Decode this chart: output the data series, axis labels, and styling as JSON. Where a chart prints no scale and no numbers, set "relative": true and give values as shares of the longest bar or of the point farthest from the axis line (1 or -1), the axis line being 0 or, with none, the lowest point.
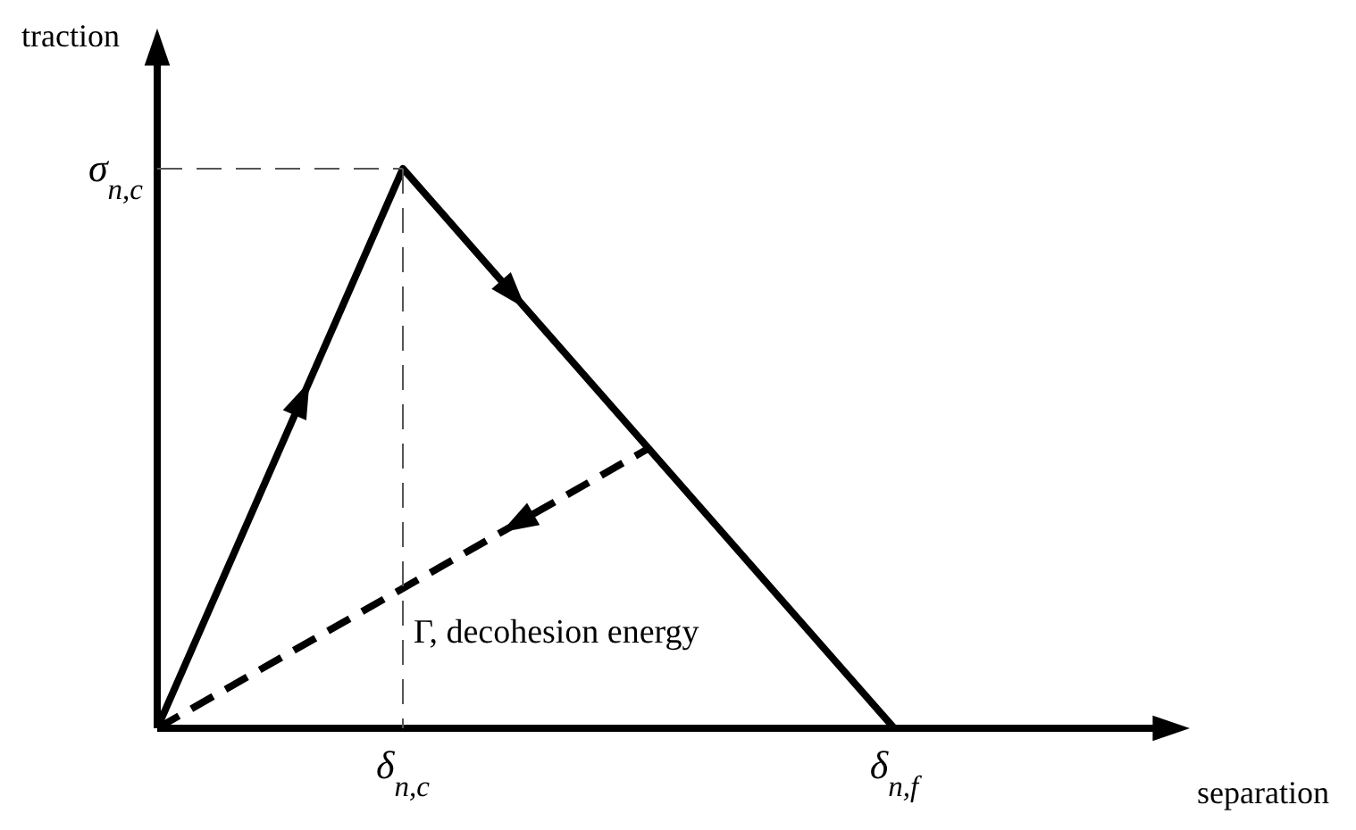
{
  "chart_data": {
    "type": "line",
    "relative": true,
    "xlabel": "separation",
    "ylabel": "traction",
    "categories": [
      null,
      "δ$_{n,c}$",
      null,
      "δ$_{n,f}$",
      null
    ],
    "series": [
      {
        "color": "#000000",
        "values": [
          0,
          1,
          0.5,
          0,
          null
        ],
        "line_style": "solid"
      },
      {
        "color": "#000000",
        "values": [
          0,
          0.25,
          0.5,
          null,
          null
        ],
        "line_style": "dashed"
      }
    ],
    "ref_lines": [
      {
        "axis": "y",
        "value": 1,
        "line_style": "dashed",
        "color": "#555555"
      },
      {
        "axis": "x",
        "value": "δ$_{n,c}$",
        "line_style": "dashed",
        "color": "#555555"
      }
    ],
    "annotations": [
      "σ$_{n,c}$",
      "Γ, decohesion energy"
    ],
    "marker": "none"
  }
}
